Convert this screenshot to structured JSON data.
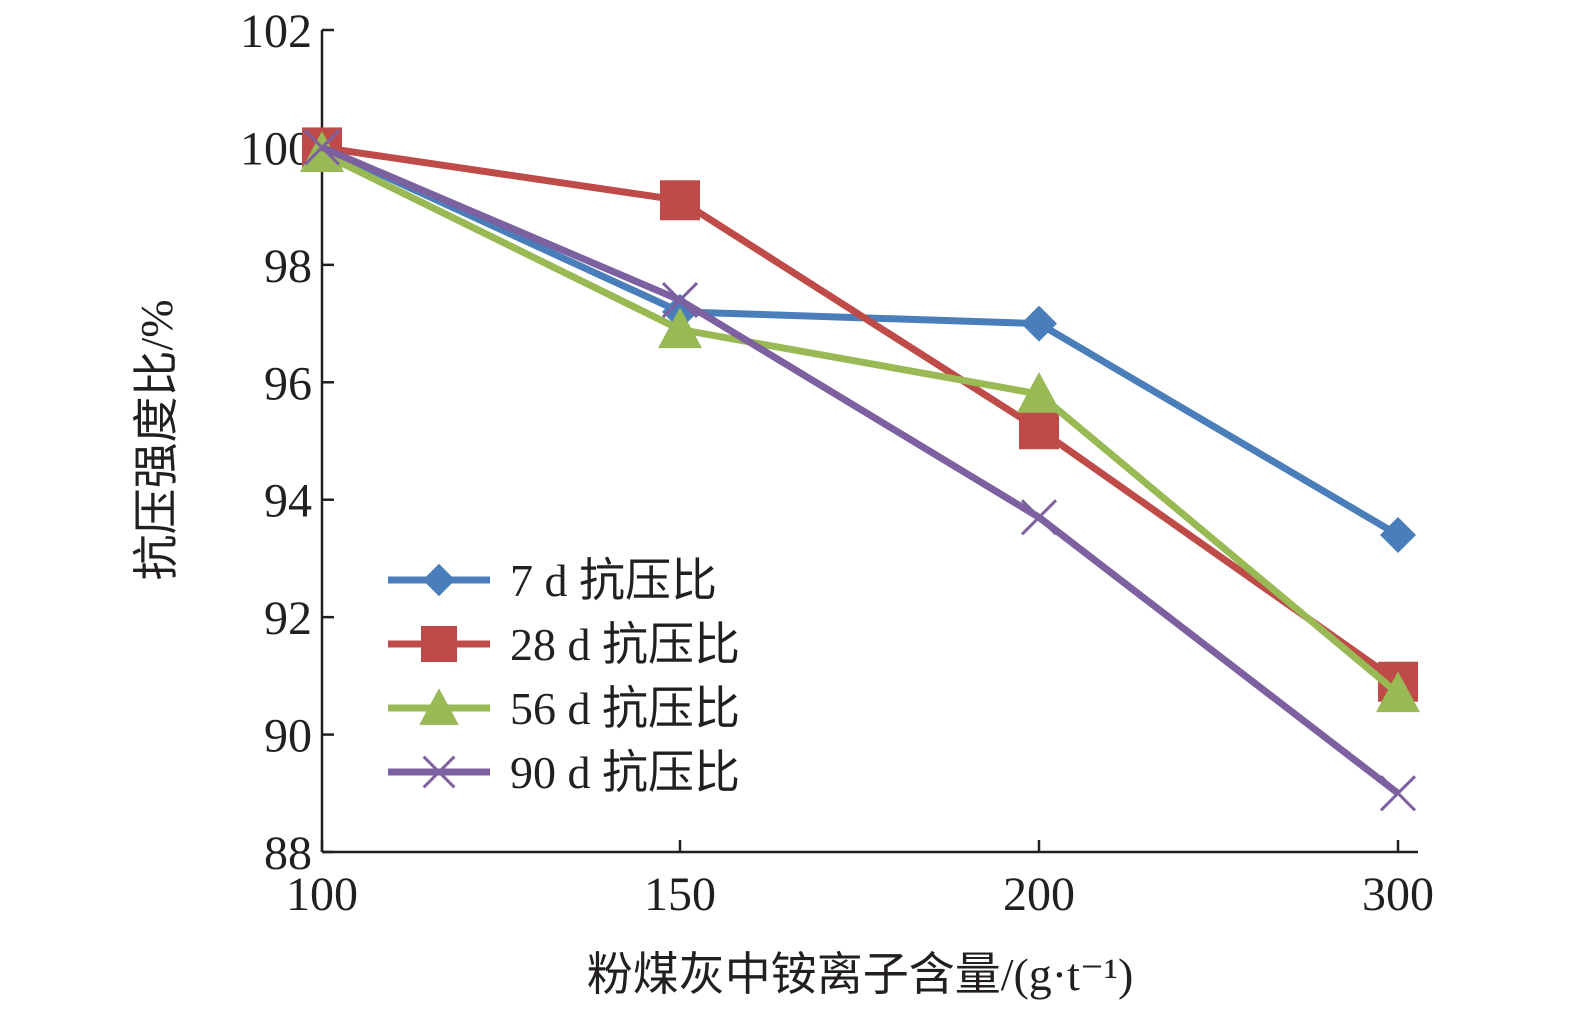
{
  "chart_data": {
    "type": "line",
    "categories": [
      "100",
      "150",
      "200",
      "300"
    ],
    "xlabel": "粉煤灰中铵离子含量/(g·t⁻¹)",
    "ylabel": "抗压强度比/%",
    "ylim": [
      88,
      102
    ],
    "yticks": [
      "88",
      "90",
      "92",
      "94",
      "96",
      "98",
      "100",
      "102"
    ],
    "grid": false,
    "legend_position": "bottom-left",
    "series": [
      {
        "name": "7 d 抗压比",
        "values": [
          100,
          97.2,
          97.0,
          93.4
        ],
        "color": "#4a7ebb",
        "marker": "diamond"
      },
      {
        "name": "28 d 抗压比",
        "values": [
          100,
          99.1,
          95.2,
          90.9
        ],
        "color": "#be4b48",
        "marker": "square"
      },
      {
        "name": "56 d 抗压比",
        "values": [
          99.9,
          96.9,
          95.8,
          90.7
        ],
        "color": "#98b954",
        "marker": "triangle"
      },
      {
        "name": "90 d 抗压比",
        "values": [
          100,
          97.4,
          93.7,
          89.0
        ],
        "color": "#7d60a0",
        "marker": "x"
      }
    ]
  }
}
